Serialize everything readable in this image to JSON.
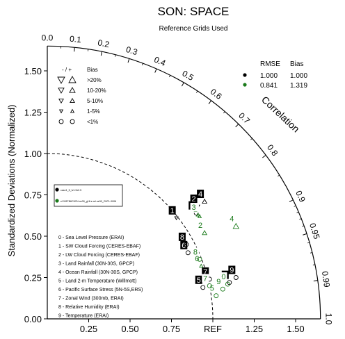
{
  "chart_data": {
    "type": "scatter",
    "subtype": "taylor-diagram",
    "title": "SON: SPACE",
    "subtitle": "Reference Grids Used",
    "ylabel": "Standardized Deviations (Normalized)",
    "xlabel": "REF",
    "correlation_label": "Correlation",
    "ylim": [
      0,
      1.65
    ],
    "xlim": [
      0,
      1.65
    ],
    "x_ticks": [
      {
        "value": 0.25,
        "label": "0.25"
      },
      {
        "value": 0.5,
        "label": "0.50"
      },
      {
        "value": 0.75,
        "label": "0.75"
      },
      {
        "value": 1.0,
        "label": "REF"
      },
      {
        "value": 1.25,
        "label": "1.25"
      },
      {
        "value": 1.5,
        "label": "1.50"
      }
    ],
    "y_ticks": [
      {
        "value": 0.0,
        "label": "0.00"
      },
      {
        "value": 0.25,
        "label": "0.25"
      },
      {
        "value": 0.5,
        "label": "0.50"
      },
      {
        "value": 0.75,
        "label": "0.75"
      },
      {
        "value": 1.0,
        "label": "1.00"
      },
      {
        "value": 1.25,
        "label": "1.25"
      },
      {
        "value": 1.5,
        "label": "1.50"
      }
    ],
    "correlation_ticks": [
      {
        "value": 0.0,
        "label": "0.0"
      },
      {
        "value": 0.1,
        "label": "0.1"
      },
      {
        "value": 0.2,
        "label": "0.2"
      },
      {
        "value": 0.3,
        "label": "0.3"
      },
      {
        "value": 0.4,
        "label": "0.4"
      },
      {
        "value": 0.5,
        "label": "0.5"
      },
      {
        "value": 0.6,
        "label": "0.6"
      },
      {
        "value": 0.7,
        "label": "0.7"
      },
      {
        "value": 0.8,
        "label": "0.8"
      },
      {
        "value": 0.9,
        "label": "0.9"
      },
      {
        "value": 0.95,
        "label": "0.95"
      },
      {
        "value": 0.99,
        "label": "0.99"
      },
      {
        "value": 1.0,
        "label": "1.0"
      }
    ],
    "case_legend": [
      {
        "name": "case1_5_fv1.9x2.5",
        "color": "#000000",
        "rmse": "1.000",
        "bias": "1.000"
      },
      {
        "name": "e13.BTB6C5CN.ne30_g16.e.rel.ne30_CNTL.0006",
        "color": "#1a7a1a",
        "rmse": "0.841",
        "bias": "1.319"
      }
    ],
    "stats_header": {
      "rmse": "RMSE",
      "bias": "Bias"
    },
    "bias_legend": {
      "header_sign": "- / +",
      "header_bias": "Bias",
      "rows": [
        {
          "label": ">20%",
          "size": 5
        },
        {
          "label": "10-20%",
          "size": 4
        },
        {
          "label": "5-10%",
          "size": 3.2
        },
        {
          "label": "1-5%",
          "size": 2.4
        },
        {
          "label": "<1%",
          "size": 0
        }
      ]
    },
    "variables": [
      {
        "id": "0",
        "label": "0 - Sea Level Pressure (ERAI)"
      },
      {
        "id": "1",
        "label": "1 - SW Cloud Forcing (CERES-EBAF)"
      },
      {
        "id": "2",
        "label": "2 - LW Cloud Forcing (CERES-EBAF)"
      },
      {
        "id": "3",
        "label": "3 - Land Rainfall (30N-30S, GPCP)"
      },
      {
        "id": "4",
        "label": "4 - Ocean Rainfall (30N-30S, GPCP)"
      },
      {
        "id": "5",
        "label": "5 - Land 2-m Temperature (Willmott)"
      },
      {
        "id": "6",
        "label": "6 - Pacific Surface Stress (5N-5S,ERS)"
      },
      {
        "id": "7",
        "label": "7 - Zonal Wind (300mb, ERAI)"
      },
      {
        "id": "8",
        "label": "8 - Relative Humidity (ERAI)"
      },
      {
        "id": "9",
        "label": "9 - Temperature (ERAI)"
      }
    ],
    "series": [
      {
        "name": "case1_5_fv1.9x2.5",
        "color": "#000000",
        "points": [
          {
            "id": "0",
            "x": 1.1,
            "y": 0.22,
            "marker": "circle",
            "size": 0
          },
          {
            "id": "1",
            "x": 0.78,
            "y": 0.61,
            "marker": "triangle-down",
            "size": 2.4
          },
          {
            "id": "2",
            "x": 0.91,
            "y": 0.68,
            "marker": "triangle-down",
            "size": 2.4
          },
          {
            "id": "3",
            "x": 0.9,
            "y": 0.64,
            "marker": "circle",
            "size": 0
          },
          {
            "id": "4",
            "x": 0.95,
            "y": 0.71,
            "marker": "triangle-up",
            "size": 3.2
          },
          {
            "id": "5",
            "x": 0.94,
            "y": 0.19,
            "marker": "circle",
            "size": 0
          },
          {
            "id": "6",
            "x": 0.85,
            "y": 0.4,
            "marker": "circle",
            "size": 0
          },
          {
            "id": "7",
            "x": 0.98,
            "y": 0.24,
            "marker": "circle",
            "size": 0
          },
          {
            "id": "8",
            "x": 0.84,
            "y": 0.45,
            "marker": "circle",
            "size": 0
          },
          {
            "id": "9",
            "x": 1.14,
            "y": 0.25,
            "marker": "circle",
            "size": 0
          }
        ]
      },
      {
        "name": "e13.BTB6C5CN.ne30_g16.e.rel.ne30_CNTL.0006",
        "color": "#1a7a1a",
        "points": [
          {
            "id": "0",
            "x": 1.09,
            "y": 0.21,
            "marker": "circle",
            "size": 0
          },
          {
            "id": "1",
            "x": 0.92,
            "y": 0.62,
            "marker": "triangle-up",
            "size": 2.4
          },
          {
            "id": "2",
            "x": 0.95,
            "y": 0.52,
            "marker": "triangle-up",
            "size": 3.2
          },
          {
            "id": "3",
            "x": 0.91,
            "y": 0.63,
            "marker": "triangle-up",
            "size": 2.4
          },
          {
            "id": "4",
            "x": 1.14,
            "y": 0.56,
            "marker": "triangle-up",
            "size": 4
          },
          {
            "id": "5",
            "x": 1.02,
            "y": 0.14,
            "marker": "circle",
            "size": 0
          },
          {
            "id": "6",
            "x": 0.93,
            "y": 0.32,
            "marker": "triangle-up",
            "size": 2.4
          },
          {
            "id": "7",
            "x": 0.98,
            "y": 0.2,
            "marker": "circle",
            "size": 0
          },
          {
            "id": "8",
            "x": 0.92,
            "y": 0.36,
            "marker": "circle",
            "size": 0
          },
          {
            "id": "9",
            "x": 1.06,
            "y": 0.18,
            "marker": "circle",
            "size": 0
          }
        ]
      }
    ]
  }
}
